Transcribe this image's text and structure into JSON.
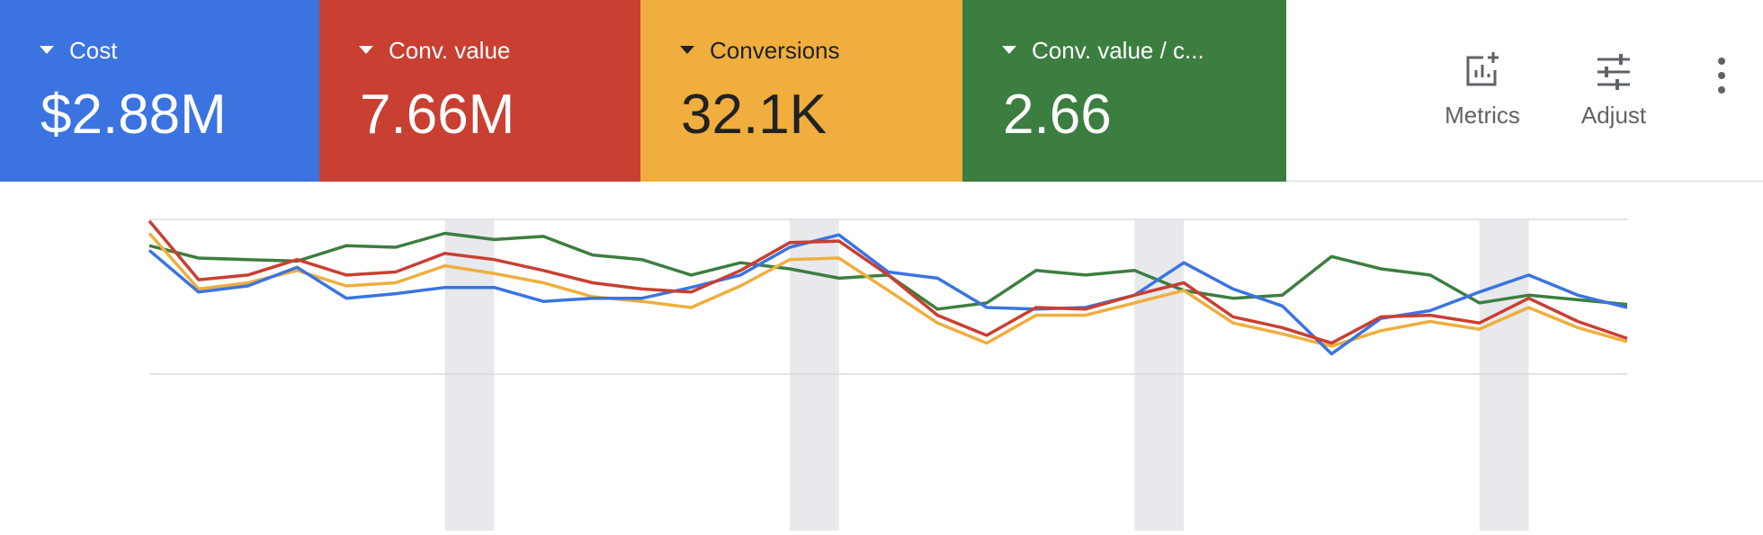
{
  "metric_cards": [
    {
      "label": "Cost",
      "value": "$2.88M",
      "color": "#3b74e0",
      "text_color": "#ffffff"
    },
    {
      "label": "Conv. value",
      "value": "7.66M",
      "color": "#c93f32",
      "text_color": "#ffffff"
    },
    {
      "label": "Conversions",
      "value": "32.1K",
      "color": "#efae3d",
      "text_color": "#202124"
    },
    {
      "label": "Conv. value / c...",
      "value": "2.66",
      "color": "#3c7e40",
      "text_color": "#ffffff"
    }
  ],
  "toolbar": {
    "buttons": [
      "Metrics",
      "Adjust"
    ]
  },
  "chart_data": {
    "type": "line",
    "ylim": [
      0,
      100
    ],
    "grid": true,
    "shaded_intervals": [
      [
        6,
        7
      ],
      [
        13,
        14
      ],
      [
        20,
        21
      ],
      [
        27,
        28
      ]
    ],
    "series": [
      {
        "color": "#3c7e40",
        "values": [
          83,
          75,
          74,
          73,
          83,
          82,
          91,
          87,
          89,
          77,
          74,
          64,
          72,
          68,
          62,
          64,
          42,
          46,
          67,
          64,
          67,
          54,
          49,
          51,
          76,
          68,
          64,
          46,
          51,
          48,
          45
        ]
      },
      {
        "color": "#efae3d",
        "values": [
          91,
          55,
          59,
          67,
          57,
          59,
          70,
          65,
          59,
          50,
          47,
          43,
          57,
          74,
          75,
          54,
          33,
          20,
          38,
          38,
          46,
          54,
          33,
          26,
          18,
          28,
          34,
          29,
          43,
          30,
          21
        ]
      },
      {
        "color": "#3b74e0",
        "values": [
          80,
          53,
          57,
          69,
          49,
          52,
          56,
          56,
          47,
          49,
          49,
          56,
          64,
          82,
          90,
          66,
          62,
          43,
          42,
          43,
          51,
          72,
          55,
          44,
          13,
          36,
          41,
          53,
          64,
          51,
          43
        ]
      },
      {
        "color": "#c93f32",
        "values": [
          99,
          61,
          64,
          74,
          64,
          66,
          78,
          74,
          67,
          59,
          55,
          53,
          67,
          85,
          86,
          64,
          38,
          25,
          43,
          42,
          51,
          59,
          37,
          30,
          20,
          37,
          38,
          33,
          49,
          34,
          23
        ]
      }
    ]
  }
}
